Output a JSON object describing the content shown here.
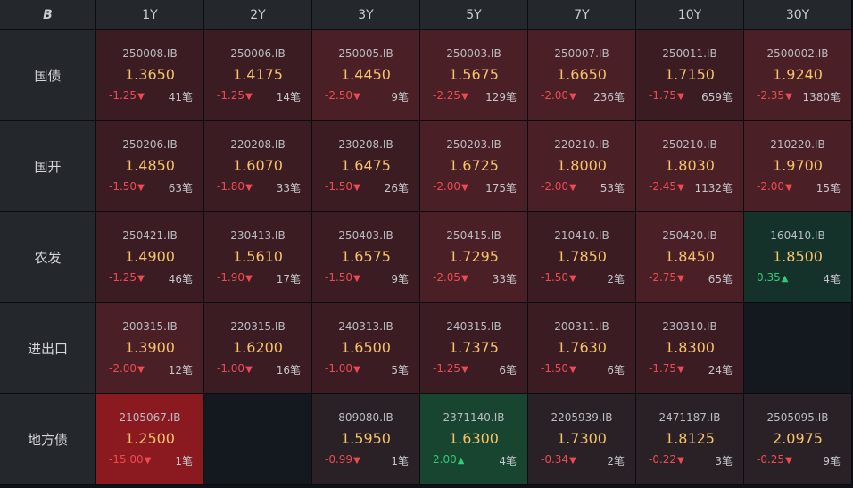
{
  "logo_text": "B",
  "tenors": [
    "1Y",
    "2Y",
    "3Y",
    "5Y",
    "7Y",
    "10Y",
    "30Y"
  ],
  "rows": [
    {
      "name": "国债",
      "cells": [
        {
          "code": "250008.IB",
          "yield": "1.3650",
          "change": "-1.25",
          "dir": "down",
          "count": "41笔",
          "shade": "dark-red"
        },
        {
          "code": "250006.IB",
          "yield": "1.4175",
          "change": "-1.25",
          "dir": "down",
          "count": "14笔",
          "shade": "dark-red"
        },
        {
          "code": "250005.IB",
          "yield": "1.4450",
          "change": "-2.50",
          "dir": "down",
          "count": "9笔",
          "shade": "mid-red"
        },
        {
          "code": "250003.IB",
          "yield": "1.5675",
          "change": "-2.25",
          "dir": "down",
          "count": "129笔",
          "shade": "mid-red"
        },
        {
          "code": "250007.IB",
          "yield": "1.6650",
          "change": "-2.00",
          "dir": "down",
          "count": "236笔",
          "shade": "mid-red"
        },
        {
          "code": "250011.IB",
          "yield": "1.7150",
          "change": "-1.75",
          "dir": "down",
          "count": "659笔",
          "shade": "dark-red"
        },
        {
          "code": "2500002.IB",
          "yield": "1.9240",
          "change": "-2.35",
          "dir": "down",
          "count": "1380笔",
          "shade": "mid-red"
        }
      ]
    },
    {
      "name": "国开",
      "cells": [
        {
          "code": "250206.IB",
          "yield": "1.4850",
          "change": "-1.50",
          "dir": "down",
          "count": "63笔",
          "shade": "dark-red"
        },
        {
          "code": "220208.IB",
          "yield": "1.6070",
          "change": "-1.80",
          "dir": "down",
          "count": "33笔",
          "shade": "dark-red"
        },
        {
          "code": "230208.IB",
          "yield": "1.6475",
          "change": "-1.50",
          "dir": "down",
          "count": "26笔",
          "shade": "dark-red"
        },
        {
          "code": "250203.IB",
          "yield": "1.6725",
          "change": "-2.00",
          "dir": "down",
          "count": "175笔",
          "shade": "mid-red"
        },
        {
          "code": "220210.IB",
          "yield": "1.8000",
          "change": "-2.00",
          "dir": "down",
          "count": "53笔",
          "shade": "mid-red"
        },
        {
          "code": "250210.IB",
          "yield": "1.8030",
          "change": "-2.45",
          "dir": "down",
          "count": "1132笔",
          "shade": "mid-red"
        },
        {
          "code": "210220.IB",
          "yield": "1.9700",
          "change": "-2.00",
          "dir": "down",
          "count": "15笔",
          "shade": "mid-red"
        }
      ]
    },
    {
      "name": "农发",
      "cells": [
        {
          "code": "250421.IB",
          "yield": "1.4900",
          "change": "-1.25",
          "dir": "down",
          "count": "46笔",
          "shade": "dark-red"
        },
        {
          "code": "230413.IB",
          "yield": "1.5610",
          "change": "-1.90",
          "dir": "down",
          "count": "17笔",
          "shade": "dark-red"
        },
        {
          "code": "250403.IB",
          "yield": "1.6575",
          "change": "-1.50",
          "dir": "down",
          "count": "9笔",
          "shade": "dark-red"
        },
        {
          "code": "250415.IB",
          "yield": "1.7295",
          "change": "-2.05",
          "dir": "down",
          "count": "33笔",
          "shade": "mid-red"
        },
        {
          "code": "210410.IB",
          "yield": "1.7850",
          "change": "-1.50",
          "dir": "down",
          "count": "2笔",
          "shade": "dark-red"
        },
        {
          "code": "250420.IB",
          "yield": "1.8450",
          "change": "-2.75",
          "dir": "down",
          "count": "65笔",
          "shade": "mid-red"
        },
        {
          "code": "160410.IB",
          "yield": "1.8500",
          "change": "0.35",
          "dir": "up",
          "count": "4笔",
          "shade": "green"
        }
      ]
    },
    {
      "name": "进出口",
      "cells": [
        {
          "code": "200315.IB",
          "yield": "1.3900",
          "change": "-2.00",
          "dir": "down",
          "count": "12笔",
          "shade": "mid-red"
        },
        {
          "code": "220315.IB",
          "yield": "1.6200",
          "change": "-1.00",
          "dir": "down",
          "count": "16笔",
          "shade": "dark-red"
        },
        {
          "code": "240313.IB",
          "yield": "1.6500",
          "change": "-1.00",
          "dir": "down",
          "count": "5笔",
          "shade": "dark-red"
        },
        {
          "code": "240315.IB",
          "yield": "1.7375",
          "change": "-1.25",
          "dir": "down",
          "count": "6笔",
          "shade": "dark-red"
        },
        {
          "code": "200311.IB",
          "yield": "1.7630",
          "change": "-1.50",
          "dir": "down",
          "count": "6笔",
          "shade": "dark-red"
        },
        {
          "code": "230310.IB",
          "yield": "1.8300",
          "change": "-1.75",
          "dir": "down",
          "count": "24笔",
          "shade": "dark-red"
        },
        {
          "empty": true
        }
      ]
    },
    {
      "name": "地方债",
      "cells": [
        {
          "code": "2105067.IB",
          "yield": "1.2500",
          "change": "-15.00",
          "dir": "down",
          "count": "1笔",
          "shade": "bright-red"
        },
        {
          "empty": true
        },
        {
          "code": "809080.IB",
          "yield": "1.5950",
          "change": "-0.99",
          "dir": "down",
          "count": "1笔",
          "shade": "neutral"
        },
        {
          "code": "2371140.IB",
          "yield": "1.6300",
          "change": "2.00",
          "dir": "up",
          "count": "4笔",
          "shade": "bright-green"
        },
        {
          "code": "2205939.IB",
          "yield": "1.7300",
          "change": "-0.34",
          "dir": "down",
          "count": "2笔",
          "shade": "neutral"
        },
        {
          "code": "2471187.IB",
          "yield": "1.8125",
          "change": "-0.22",
          "dir": "down",
          "count": "3笔",
          "shade": "neutral"
        },
        {
          "code": "2505095.IB",
          "yield": "2.0975",
          "change": "-0.25",
          "dir": "down",
          "count": "9笔",
          "shade": "neutral"
        }
      ]
    }
  ],
  "colors": {
    "down": "#ef4a54",
    "up": "#33c979",
    "yield": "#f4c36a"
  }
}
